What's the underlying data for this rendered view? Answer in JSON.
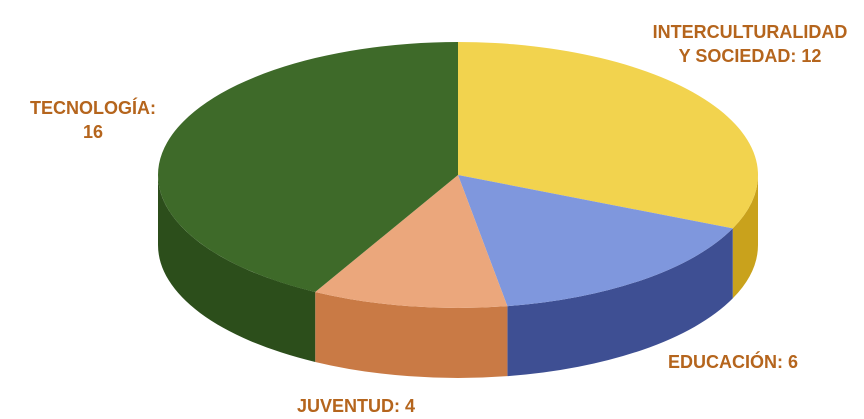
{
  "chart_data": {
    "type": "pie",
    "title": "",
    "slices": [
      {
        "label": "INTERCULTURALIDAD Y SOCIEDAD: 12",
        "name": "INTERCULTURALIDAD Y SOCIEDAD",
        "value": 12,
        "color": "#f2d34e",
        "side": "#c9a21c"
      },
      {
        "label": "EDUCACIÓN: 6",
        "name": "EDUCACIÓN",
        "value": 6,
        "color": "#7f97dd",
        "side": "#3e4f93"
      },
      {
        "label": "JUVENTUD: 4",
        "name": "JUVENTUD",
        "value": 4,
        "color": "#eba77c",
        "side": "#c97a45"
      },
      {
        "label": "TECNOLOGÍA: 16",
        "name": "TECNOLOGÍA",
        "value": 16,
        "color": "#3e6a29",
        "side": "#2c4e1b"
      }
    ],
    "label_lines": [
      [
        "INTERCULTURALIDAD",
        "Y SOCIEDAD: 12"
      ],
      [
        "EDUCACIÓN: 6"
      ],
      [
        "JUVENTUD: 4"
      ],
      [
        "TECNOLOGÍA:",
        "16"
      ]
    ],
    "label_color": "#b5651d",
    "legend": "none"
  }
}
